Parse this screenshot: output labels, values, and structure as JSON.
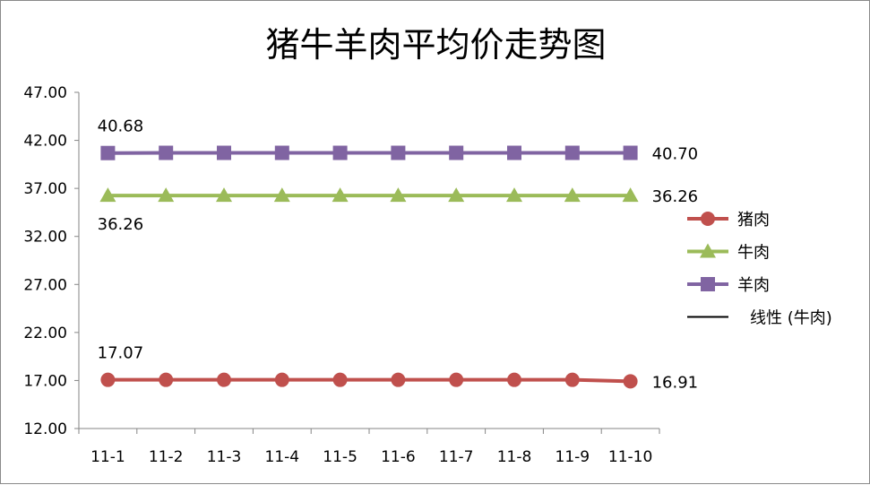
{
  "chart_data": {
    "type": "line",
    "title": "猪牛羊肉平均价走势图",
    "categories": [
      "11-1",
      "11-2",
      "11-3",
      "11-4",
      "11-5",
      "11-6",
      "11-7",
      "11-8",
      "11-9",
      "11-10"
    ],
    "ylim": [
      12.0,
      47.0
    ],
    "yticks": [
      "12.00",
      "17.00",
      "22.00",
      "27.00",
      "32.00",
      "37.00",
      "42.00",
      "47.00"
    ],
    "grid": false,
    "legend_position": "right",
    "series": [
      {
        "name": "猪肉",
        "color": "#c0504d",
        "marker": "circle",
        "values": [
          17.07,
          17.07,
          17.07,
          17.07,
          17.07,
          17.07,
          17.07,
          17.07,
          17.07,
          16.91
        ]
      },
      {
        "name": "牛肉",
        "color": "#9bbb59",
        "marker": "triangle",
        "values": [
          36.26,
          36.26,
          36.26,
          36.26,
          36.26,
          36.26,
          36.26,
          36.26,
          36.26,
          36.26
        ]
      },
      {
        "name": "羊肉",
        "color": "#8064a2",
        "marker": "square",
        "values": [
          40.68,
          40.7,
          40.7,
          40.7,
          40.7,
          40.7,
          40.7,
          40.7,
          40.7,
          40.7
        ]
      }
    ],
    "trendline": {
      "name": "线性 (牛肉)",
      "color": "#000000",
      "start": 36.26,
      "end": 36.26
    },
    "data_labels": [
      {
        "series": "羊肉",
        "index": 0,
        "text": "40.68",
        "side": "above"
      },
      {
        "series": "羊肉",
        "index": 9,
        "text": "40.70",
        "side": "right"
      },
      {
        "series": "牛肉",
        "index": 0,
        "text": "36.26",
        "side": "below"
      },
      {
        "series": "牛肉",
        "index": 9,
        "text": "36.26",
        "side": "right"
      },
      {
        "series": "猪肉",
        "index": 0,
        "text": "17.07",
        "side": "above"
      },
      {
        "series": "猪肉",
        "index": 9,
        "text": "16.91",
        "side": "right"
      }
    ]
  }
}
